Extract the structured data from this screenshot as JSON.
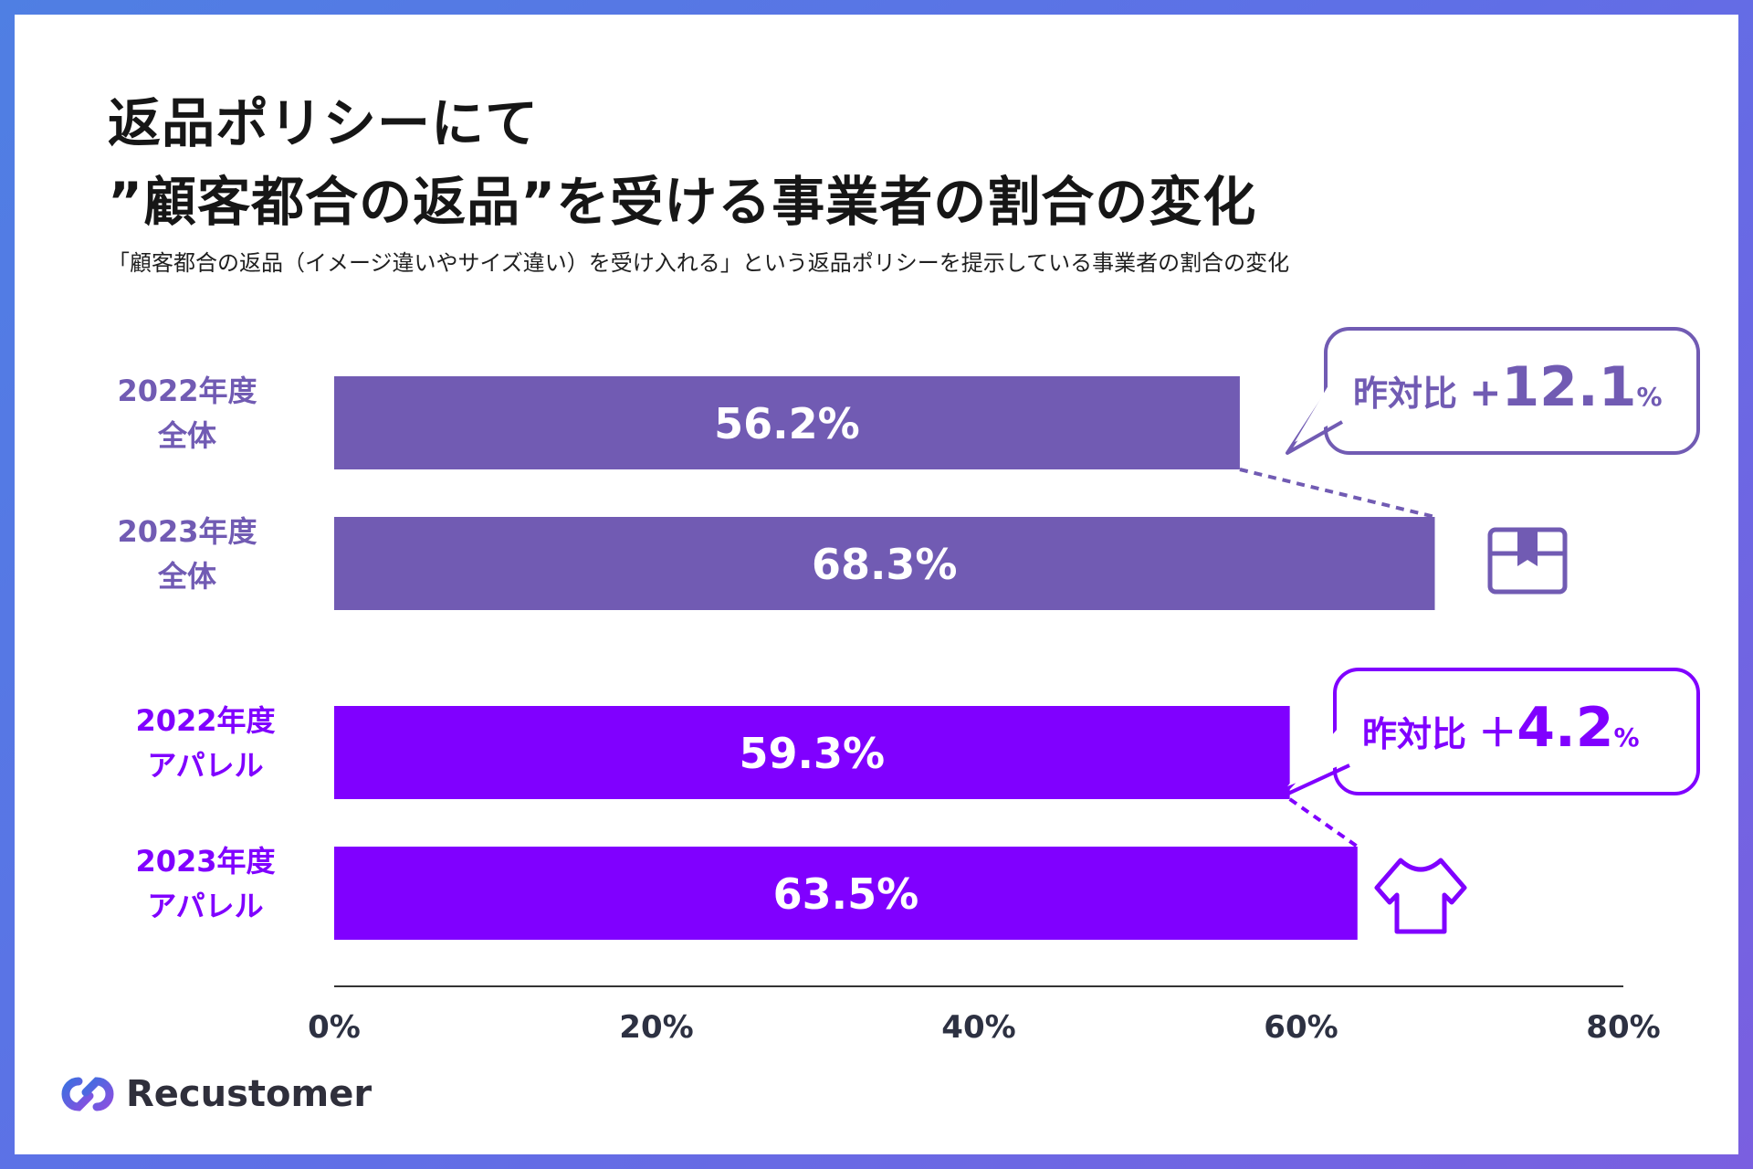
{
  "title": {
    "line1": "返品ポリシーにて",
    "line2": "”顧客都合の返品”を受ける事業者の割合の変化"
  },
  "subtitle": "「顧客都合の返品（イメージ違いやサイズ違い）を受け入れる」という返品ポリシーを提示している事業者の割合の変化",
  "brand": {
    "name": "Recustomer"
  },
  "colors": {
    "overall": "#715bb3",
    "apparel": "#8000ff",
    "axis": "#333333",
    "tick_text": "#2d3142"
  },
  "chart_data": {
    "type": "bar",
    "orientation": "horizontal",
    "title": "”顧客都合の返品”を受ける事業者の割合の変化",
    "xlim": [
      0,
      80
    ],
    "xticks": [
      0,
      20,
      40,
      60,
      80
    ],
    "xtick_labels": [
      "0%",
      "20%",
      "40%",
      "60%",
      "80%"
    ],
    "bars": [
      {
        "label_line1": "2022年度",
        "label_line2": "全体",
        "value": 56.2,
        "value_label": "56.2%",
        "group": "overall"
      },
      {
        "label_line1": "2023年度",
        "label_line2": "全体",
        "value": 68.3,
        "value_label": "68.3%",
        "group": "overall"
      },
      {
        "label_line1": "2022年度",
        "label_line2": "アパレル",
        "value": 59.3,
        "value_label": "59.3%",
        "group": "apparel"
      },
      {
        "label_line1": "2023年度",
        "label_line2": "アパレル",
        "value": 63.5,
        "value_label": "63.5%",
        "group": "apparel"
      }
    ],
    "annotations": [
      {
        "group": "overall",
        "prefix": "昨対比",
        "sign": "+",
        "value": "12.1",
        "unit": "%",
        "icon": "box-icon"
      },
      {
        "group": "apparel",
        "prefix": "昨対比",
        "sign": "＋",
        "value": "4.2",
        "unit": "%",
        "icon": "tshirt-icon"
      }
    ]
  }
}
